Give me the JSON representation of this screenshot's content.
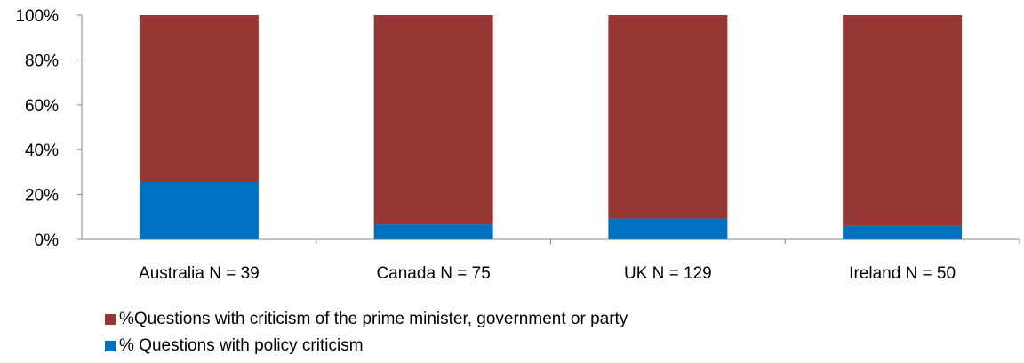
{
  "chart_data": {
    "type": "bar",
    "stacked": true,
    "percent": true,
    "categories": [
      "Australia N = 39",
      "Canada N = 75",
      "UK N = 129",
      "Ireland N = 50"
    ],
    "series": [
      {
        "name": "% Questions with policy criticism",
        "values": [
          25.6,
          6.7,
          9.3,
          6.0
        ],
        "color": "#0070C0"
      },
      {
        "name": "%Questions with criticism of the prime minister, government or party",
        "values": [
          74.4,
          93.3,
          90.7,
          94.0
        ],
        "color": "#953735"
      }
    ],
    "ylim": [
      0,
      100
    ],
    "yticks": [
      "0%",
      "20%",
      "40%",
      "60%",
      "80%",
      "100%"
    ],
    "grid": false,
    "legend_position": "bottom",
    "legend_order": [
      1,
      0
    ]
  }
}
